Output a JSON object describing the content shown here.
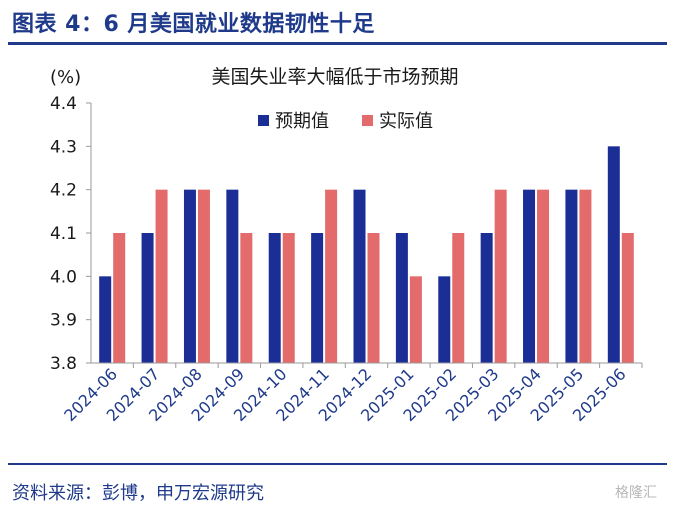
{
  "header": {
    "title": "图表 4：6 月美国就业数据韧性十足"
  },
  "footer": {
    "source": "资料来源：彭博，申万宏源研究"
  },
  "watermark": {
    "text": "格隆汇"
  },
  "colors": {
    "accent": "#1f3a8a",
    "series_expected": "#1b2e96",
    "series_actual": "#e36b6b"
  },
  "chart_data": {
    "type": "bar",
    "title": "美国失业率大幅低于市场预期",
    "ylabel": "(%)",
    "xlabel": "",
    "ylim": [
      3.8,
      4.4
    ],
    "yticks": [
      "4.4",
      "4.3",
      "4.2",
      "4.1",
      "4.0",
      "3.9",
      "3.8"
    ],
    "ytick_values": [
      4.4,
      4.3,
      4.2,
      4.1,
      4.0,
      3.9,
      3.8
    ],
    "legend_position": "top-right",
    "grid": false,
    "categories": [
      "2024-06",
      "2024-07",
      "2024-08",
      "2024-09",
      "2024-10",
      "2024-11",
      "2024-12",
      "2025-01",
      "2025-02",
      "2025-03",
      "2025-04",
      "2025-05",
      "2025-06"
    ],
    "series": [
      {
        "name": "预期值",
        "color": "#1b2e96",
        "values": [
          4.0,
          4.1,
          4.2,
          4.2,
          4.1,
          4.1,
          4.2,
          4.1,
          4.0,
          4.1,
          4.2,
          4.2,
          4.3
        ]
      },
      {
        "name": "实际值",
        "color": "#e36b6b",
        "values": [
          4.1,
          4.2,
          4.2,
          4.1,
          4.1,
          4.2,
          4.1,
          4.0,
          4.1,
          4.2,
          4.2,
          4.2,
          4.1
        ]
      }
    ]
  }
}
